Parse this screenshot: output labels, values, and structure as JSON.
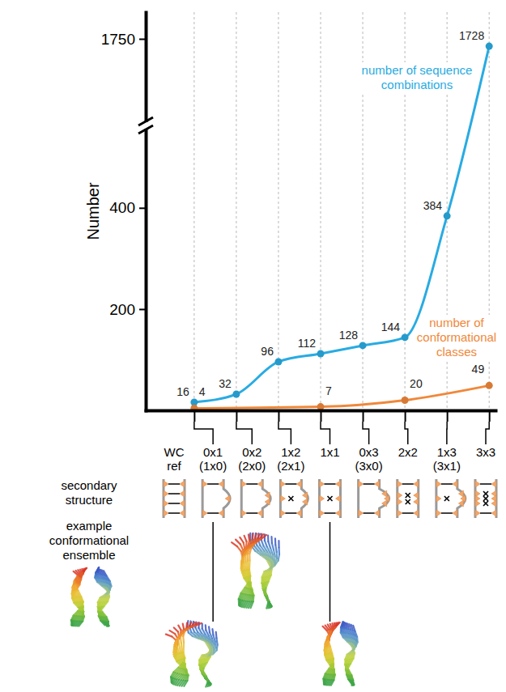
{
  "chart_data": {
    "type": "line",
    "categories": [
      "WC ref",
      "0x1 (1x0)",
      "0x2 (2x0)",
      "1x2 (2x1)",
      "1x1",
      "0x3 (3x0)",
      "2x2",
      "1x3 (3x1)",
      "3x3"
    ],
    "series": [
      {
        "name": "number of sequence combinations",
        "color": "#29abe2",
        "marker": "circle",
        "x": [
          "0x1 (1x0)",
          "0x2 (2x0)",
          "1x2 (2x1)",
          "1x1",
          "0x3 (3x0)",
          "2x2",
          "1x3 (3x1)",
          "3x3"
        ],
        "values": [
          16,
          32,
          96,
          112,
          128,
          144,
          384,
          1728
        ]
      },
      {
        "name": "number of conformational classes",
        "color": "#f0883a",
        "marker": "circle",
        "x": [
          "0x1 (1x0)",
          "1x1",
          "2x2",
          "3x3"
        ],
        "values": [
          4,
          7,
          20,
          49
        ]
      }
    ],
    "ylabel": "Number",
    "ylim": [
      0,
      1830
    ],
    "ybreak": [
      550,
      1510
    ],
    "yticks": [
      200,
      400,
      1750
    ],
    "grid": true,
    "data_labels": true,
    "row_labels": [
      "secondary structure",
      "example conformational ensemble"
    ]
  }
}
